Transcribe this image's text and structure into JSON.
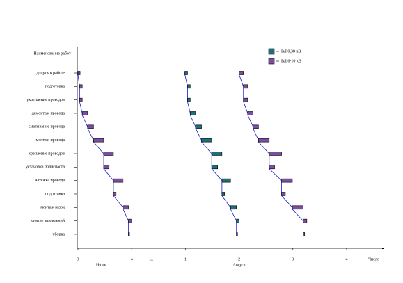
{
  "chart_data": {
    "type": "gantt",
    "y_label": "Наименование работ",
    "x_label": "Число",
    "categories": [
      "допуск к работе",
      "подготовка",
      "укрепление проводов",
      "демонтаж провода",
      "сматывание провода",
      "монтаж провода",
      "крепление проводов",
      "установка полиспаста",
      "натяжка провода",
      "подготовка",
      "монтаж вязок",
      "снятие заземлений",
      "уборка"
    ],
    "xlim": [
      0,
      5.7
    ],
    "xticks": [
      {
        "value": 0,
        "label": "3"
      },
      {
        "value": 1,
        "label": "4"
      },
      {
        "value": 2,
        "label": "1"
      },
      {
        "value": 3,
        "label": "2"
      },
      {
        "value": 4,
        "label": "3"
      },
      {
        "value": 5,
        "label": "4"
      }
    ],
    "gap_label": "...",
    "months": [
      {
        "value": 0.43,
        "label": "Июль"
      },
      {
        "value": 3.0,
        "label": "Август"
      }
    ],
    "legend": [
      {
        "name": "ВЛ 0,38 кВ",
        "color": "#1f6e7a"
      },
      {
        "name": "ВЛ 6-10 кВ",
        "color": "#7b4f9d"
      }
    ],
    "series": [
      {
        "color": "#7b4f9d",
        "start": [
          0,
          0.03,
          0.03,
          0.08,
          0.18,
          0.29,
          0.48,
          0.48,
          0.66,
          0.66,
          0.84,
          0.94,
          0.94
        ],
        "end": [
          0.04,
          0.08,
          0.08,
          0.18,
          0.29,
          0.48,
          0.66,
          0.58,
          0.84,
          0.71,
          0.94,
          0.99,
          0.96
        ]
      },
      {
        "color": "#1f6e7a",
        "start": [
          1.99,
          2.04,
          2.04,
          2.09,
          2.19,
          2.3,
          2.49,
          2.49,
          2.68,
          2.68,
          2.84,
          2.95,
          2.95
        ],
        "end": [
          2.04,
          2.09,
          2.09,
          2.19,
          2.3,
          2.49,
          2.68,
          2.6,
          2.84,
          2.73,
          2.95,
          3.0,
          2.97
        ]
      },
      {
        "color": "#7b4f9d",
        "start": [
          3.0,
          3.08,
          3.08,
          3.16,
          3.26,
          3.36,
          3.56,
          3.56,
          3.79,
          3.79,
          3.99,
          4.19,
          4.19
        ],
        "end": [
          3.08,
          3.16,
          3.16,
          3.26,
          3.36,
          3.56,
          3.79,
          3.66,
          3.99,
          3.86,
          4.19,
          4.26,
          4.22
        ]
      }
    ]
  }
}
